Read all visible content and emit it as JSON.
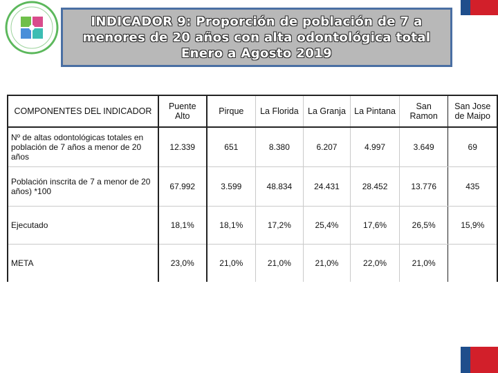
{
  "title": "INDICADOR 9: Proporción de población de 7 a\nmenores de 20 años con alta odontológica total\nEnero a Agosto 2019",
  "colors": {
    "flag_blue": "#1f4e8c",
    "flag_red": "#d21f2a",
    "title_bg": "#b8b8b8",
    "title_border": "#4a6fa3"
  },
  "logo_icon": "health-service-logo-icon",
  "table": {
    "headers": [
      "COMPONENTES DEL INDICADOR",
      "Puente Alto",
      "Pirque",
      "La Florida",
      "La Granja",
      "La Pintana",
      "San Ramon",
      "San Jose de Maipo"
    ],
    "rows": [
      {
        "label": "Nº de altas odontológicas totales en población de 7 años a menor de 20 años",
        "values": [
          "12.339",
          "651",
          "8.380",
          "6.207",
          "4.997",
          "3.649",
          "69"
        ]
      },
      {
        "label": "Población inscrita de 7 a menor de 20 años) *100",
        "values": [
          "67.992",
          "3.599",
          "48.834",
          "24.431",
          "28.452",
          "13.776",
          "435"
        ]
      },
      {
        "label": "Ejecutado",
        "values": [
          "18,1%",
          "18,1%",
          "17,2%",
          "25,4%",
          "17,6%",
          "26,5%",
          "15,9%"
        ]
      },
      {
        "label": "META",
        "values": [
          "23,0%",
          "21,0%",
          "21,0%",
          "21,0%",
          "22,0%",
          "21,0%",
          ""
        ]
      }
    ]
  }
}
